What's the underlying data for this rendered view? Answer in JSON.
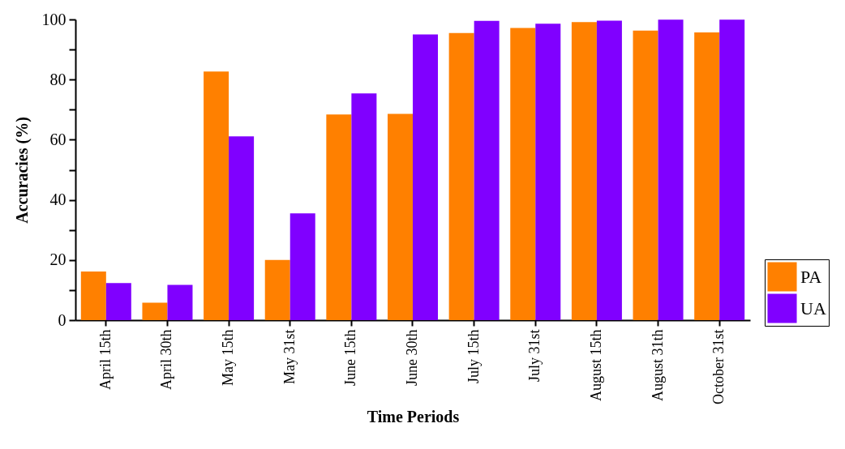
{
  "chart_data": {
    "type": "bar",
    "xlabel": "Time Periods",
    "ylabel": "Accuracies (%)",
    "categories": [
      "April 15th",
      "April 30th",
      "May 15th",
      "May 31st",
      "June 15th",
      "June 30th",
      "July 15th",
      "July 31st",
      "August 15th",
      "August 31th",
      "October 31st"
    ],
    "series": [
      {
        "name": "PA",
        "color": "#ff8000",
        "values": [
          16.2,
          5.8,
          82.7,
          20.0,
          68.4,
          68.6,
          95.5,
          97.2,
          99.1,
          96.3,
          95.7
        ]
      },
      {
        "name": "UA",
        "color": "#8000ff",
        "values": [
          12.3,
          11.7,
          61.1,
          35.5,
          75.4,
          95.0,
          99.5,
          98.6,
          99.6,
          99.9,
          99.9
        ]
      }
    ],
    "ylim": [
      0,
      100
    ],
    "yticks": [
      0,
      {
        "value": 10,
        "label": null
      },
      20,
      {
        "value": 30,
        "label": null
      },
      40,
      {
        "value": 50,
        "label": null
      },
      60,
      {
        "value": 70,
        "label": null
      },
      80,
      {
        "value": 90,
        "label": null
      },
      100
    ],
    "grid": false,
    "legend": "right"
  }
}
